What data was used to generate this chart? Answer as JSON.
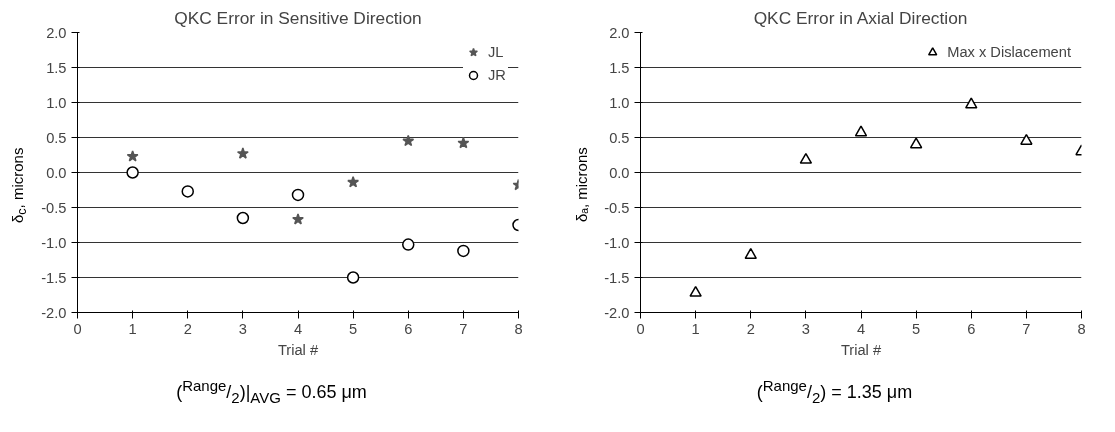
{
  "chart_data": [
    {
      "type": "scatter",
      "title": "QKC Error in Sensitive Direction",
      "xlabel": "Trial #",
      "ylabel": "δ$_{c}$, microns",
      "x": [
        1,
        2,
        3,
        4,
        5,
        6,
        7,
        8
      ],
      "series": [
        {
          "name": "JL",
          "color": "#555555",
          "marker": "star",
          "values": [
            0.23,
            null,
            0.27,
            -0.67,
            -0.14,
            0.45,
            0.42,
            -0.18
          ]
        },
        {
          "name": "JR",
          "color": "#000000",
          "marker": "circle",
          "values": [
            0.0,
            -0.27,
            -0.65,
            -0.32,
            -1.5,
            -1.03,
            -1.12,
            -0.75
          ]
        }
      ],
      "xlim": [
        0,
        8
      ],
      "xticks": [
        0,
        1,
        2,
        3,
        4,
        5,
        6,
        7,
        8
      ],
      "ylim": [
        -2.0,
        2.0
      ],
      "yticks": [
        {
          "value": -2,
          "label": "-2.0"
        },
        {
          "value": -1.5,
          "label": "-1.5"
        },
        {
          "value": -1,
          "label": "-1.0"
        },
        {
          "value": -0.5,
          "label": "-0.5"
        },
        {
          "value": 0,
          "label": "0.0"
        },
        {
          "value": 0.5,
          "label": "0.5"
        },
        {
          "value": 1,
          "label": "1.0"
        },
        {
          "value": 1.5,
          "label": "1.5"
        },
        {
          "value": 2,
          "label": "2.0"
        }
      ],
      "grid": "y",
      "legend": "top right",
      "annotations": [
        "($^{Range}$/$_{2}$)|$_{AVG}$ = 0.65 μm"
      ]
    },
    {
      "type": "scatter",
      "title": "QKC Error in Axial Direction",
      "xlabel": "Trial #",
      "ylabel": "δₐ, microns",
      "x": [
        1,
        2,
        3,
        4,
        5,
        6,
        7,
        8
      ],
      "series": [
        {
          "name": "Max x Dislacement",
          "color": "#000000",
          "marker": "triangle",
          "values": [
            -1.72,
            -1.18,
            0.18,
            0.57,
            0.4,
            0.97,
            0.45,
            0.3
          ]
        }
      ],
      "xlim": [
        0,
        8
      ],
      "xticks": [
        0,
        1,
        2,
        3,
        4,
        5,
        6,
        7,
        8
      ],
      "ylim": [
        -2.0,
        2.0
      ],
      "yticks": [
        {
          "value": -2,
          "label": "-2.0"
        },
        {
          "value": -1.5,
          "label": "-1.5"
        },
        {
          "value": -1,
          "label": "-1.0"
        },
        {
          "value": -0.5,
          "label": "-0.5"
        },
        {
          "value": 0,
          "label": "0.0"
        },
        {
          "value": 0.5,
          "label": "0.5"
        },
        {
          "value": 1,
          "label": "1.0"
        },
        {
          "value": 1.5,
          "label": "1.5"
        },
        {
          "value": 2,
          "label": "2.0"
        }
      ],
      "grid": "y",
      "legend": "top right",
      "annotations": [
        "($^{Range}$/$_{2}$) = 1.35 μm"
      ]
    }
  ]
}
